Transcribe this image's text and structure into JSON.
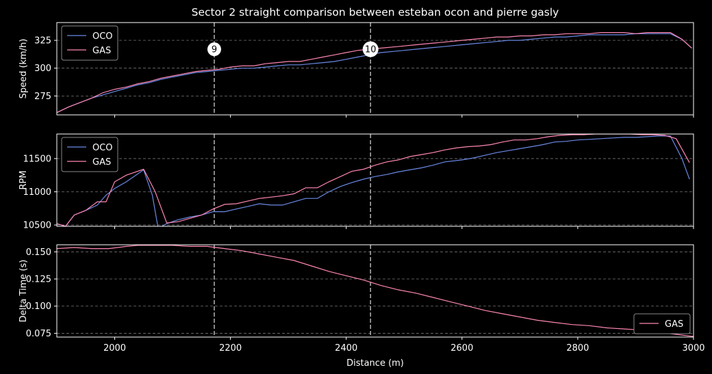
{
  "title": "Sector 2 straight comparison between esteban ocon and pierre gasly",
  "xlabel": "Distance (m)",
  "colors": {
    "OCO": "#6b8ae6",
    "GAS": "#ff87b4",
    "background": "#000000",
    "grid": "#777777",
    "corner": "#aaaaaa"
  },
  "chart_data": [
    {
      "type": "line",
      "ylabel": "Speed (km/h)",
      "xlim": [
        1900,
        3000
      ],
      "ylim": [
        258,
        341
      ],
      "yticks": [
        275,
        300,
        325
      ],
      "grid": true,
      "legend": "top-left",
      "corners": [
        {
          "label": "9",
          "x": 2172,
          "y": 317
        },
        {
          "label": "10",
          "x": 2442,
          "y": 317
        }
      ],
      "series": [
        {
          "name": "OCO",
          "x": [
            1900,
            1920,
            1940,
            1960,
            1980,
            2000,
            2020,
            2040,
            2060,
            2080,
            2100,
            2120,
            2140,
            2160,
            2180,
            2200,
            2220,
            2240,
            2260,
            2280,
            2300,
            2320,
            2340,
            2360,
            2380,
            2400,
            2420,
            2440,
            2460,
            2480,
            2500,
            2520,
            2540,
            2560,
            2580,
            2600,
            2620,
            2640,
            2660,
            2680,
            2700,
            2720,
            2740,
            2760,
            2780,
            2800,
            2820,
            2840,
            2860,
            2880,
            2900,
            2920,
            2940,
            2960,
            2980,
            2997
          ],
          "y": [
            260,
            265,
            269,
            273,
            276,
            279,
            282,
            285,
            287,
            290,
            292,
            294,
            296,
            297,
            298,
            299,
            300,
            300,
            301,
            302,
            303,
            303,
            304,
            305,
            306,
            308,
            310,
            312,
            314,
            315,
            316,
            317,
            318,
            319,
            320,
            321,
            322,
            323,
            324,
            325,
            325,
            326,
            327,
            328,
            328,
            329,
            330,
            330,
            330,
            330,
            331,
            331,
            331,
            331,
            326,
            318
          ]
        },
        {
          "name": "GAS",
          "x": [
            1900,
            1920,
            1940,
            1960,
            1980,
            2000,
            2020,
            2040,
            2060,
            2080,
            2100,
            2120,
            2140,
            2160,
            2180,
            2200,
            2220,
            2240,
            2260,
            2280,
            2300,
            2320,
            2340,
            2360,
            2380,
            2400,
            2420,
            2440,
            2460,
            2480,
            2500,
            2520,
            2540,
            2560,
            2580,
            2600,
            2620,
            2640,
            2660,
            2680,
            2700,
            2720,
            2740,
            2760,
            2780,
            2800,
            2820,
            2840,
            2860,
            2880,
            2900,
            2920,
            2940,
            2960,
            2980,
            2997
          ],
          "y": [
            260,
            265,
            269,
            273,
            278,
            281,
            283,
            286,
            288,
            291,
            293,
            295,
            297,
            298,
            299,
            301,
            302,
            302,
            304,
            305,
            306,
            306,
            308,
            310,
            312,
            314,
            316,
            317,
            318,
            319,
            320,
            321,
            322,
            323,
            324,
            325,
            326,
            327,
            328,
            328,
            329,
            329,
            330,
            330,
            331,
            331,
            331,
            332,
            332,
            332,
            331,
            332,
            332,
            332,
            326,
            318
          ]
        }
      ]
    },
    {
      "type": "line",
      "ylabel": "RPM",
      "xlim": [
        1900,
        3000
      ],
      "ylim": [
        10480,
        11870
      ],
      "yticks": [
        10500,
        11000,
        11500
      ],
      "grid": true,
      "legend": "top-left",
      "series": [
        {
          "name": "OCO",
          "x": [
            1900,
            1915,
            1930,
            1950,
            1970,
            1985,
            2000,
            2020,
            2050,
            2065,
            2075,
            2090,
            2110,
            2130,
            2150,
            2170,
            2190,
            2210,
            2230,
            2250,
            2270,
            2290,
            2310,
            2330,
            2350,
            2370,
            2390,
            2410,
            2430,
            2450,
            2470,
            2490,
            2510,
            2530,
            2550,
            2570,
            2600,
            2620,
            2640,
            2660,
            2680,
            2700,
            2720,
            2740,
            2760,
            2780,
            2800,
            2820,
            2840,
            2860,
            2880,
            2900,
            2920,
            2940,
            2960,
            2980,
            2993
          ],
          "y": [
            10520,
            10480,
            10650,
            10720,
            10800,
            10950,
            11050,
            11150,
            11330,
            10950,
            10450,
            10520,
            10580,
            10620,
            10650,
            10700,
            10700,
            10740,
            10780,
            10820,
            10800,
            10800,
            10850,
            10900,
            10900,
            11000,
            11080,
            11140,
            11190,
            11230,
            11260,
            11300,
            11330,
            11360,
            11400,
            11450,
            11480,
            11510,
            11550,
            11590,
            11620,
            11650,
            11680,
            11710,
            11750,
            11760,
            11780,
            11790,
            11800,
            11810,
            11820,
            11820,
            11830,
            11840,
            11840,
            11500,
            11190
          ]
        },
        {
          "name": "GAS",
          "x": [
            1900,
            1915,
            1930,
            1950,
            1970,
            1985,
            2000,
            2020,
            2050,
            2070,
            2090,
            2110,
            2130,
            2150,
            2170,
            2190,
            2210,
            2230,
            2250,
            2270,
            2290,
            2310,
            2330,
            2350,
            2370,
            2390,
            2410,
            2430,
            2450,
            2470,
            2490,
            2510,
            2530,
            2550,
            2570,
            2590,
            2610,
            2630,
            2650,
            2670,
            2690,
            2710,
            2730,
            2750,
            2770,
            2790,
            2810,
            2830,
            2850,
            2870,
            2890,
            2910,
            2930,
            2950,
            2970,
            2993
          ],
          "y": [
            10520,
            10480,
            10650,
            10720,
            10850,
            10850,
            11150,
            11250,
            11340,
            11000,
            10530,
            10550,
            10600,
            10650,
            10740,
            10810,
            10820,
            10860,
            10900,
            10920,
            10940,
            10970,
            11060,
            11060,
            11150,
            11230,
            11310,
            11340,
            11400,
            11450,
            11480,
            11530,
            11560,
            11590,
            11630,
            11660,
            11680,
            11690,
            11710,
            11750,
            11780,
            11780,
            11800,
            11830,
            11850,
            11860,
            11860,
            11870,
            11870,
            11870,
            11870,
            11860,
            11860,
            11850,
            11800,
            11440
          ]
        }
      ]
    },
    {
      "type": "line",
      "ylabel": "Delta Time (s)",
      "xlim": [
        1900,
        3000
      ],
      "ylim": [
        0.0715,
        0.1565
      ],
      "yticks": [
        0.075,
        0.1,
        0.125,
        0.15
      ],
      "grid": true,
      "legend": "bottom-right",
      "series": [
        {
          "name": "GAS",
          "x": [
            1900,
            1930,
            1960,
            1990,
            2020,
            2040,
            2060,
            2080,
            2100,
            2130,
            2160,
            2190,
            2220,
            2250,
            2280,
            2310,
            2340,
            2370,
            2400,
            2430,
            2460,
            2490,
            2520,
            2550,
            2580,
            2610,
            2640,
            2670,
            2700,
            2730,
            2760,
            2790,
            2820,
            2850,
            2880,
            2910,
            2940,
            2970,
            3000
          ],
          "y": [
            0.153,
            0.154,
            0.153,
            0.153,
            0.155,
            0.156,
            0.156,
            0.156,
            0.156,
            0.155,
            0.155,
            0.153,
            0.151,
            0.148,
            0.145,
            0.142,
            0.137,
            0.132,
            0.128,
            0.124,
            0.119,
            0.115,
            0.112,
            0.108,
            0.104,
            0.1,
            0.096,
            0.093,
            0.09,
            0.087,
            0.085,
            0.083,
            0.082,
            0.08,
            0.079,
            0.078,
            0.076,
            0.074,
            0.072
          ]
        }
      ]
    }
  ]
}
